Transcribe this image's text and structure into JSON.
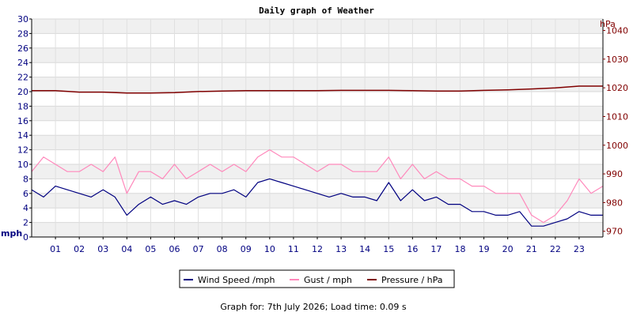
{
  "chart_data": {
    "type": "line",
    "title": "Daily graph of Weather",
    "footer": {
      "text": "Graph for: 7th July 2026; Load time: 0.09 s"
    },
    "x_ticks": [
      "01",
      "02",
      "03",
      "04",
      "05",
      "06",
      "07",
      "08",
      "09",
      "10",
      "11",
      "12",
      "13",
      "14",
      "15",
      "16",
      "17",
      "18",
      "19",
      "20",
      "21",
      "22",
      "23"
    ],
    "xlim": [
      0,
      24
    ],
    "grid": true,
    "legend_placement": "bottom-center",
    "left_axis": {
      "unit_label": "mph",
      "ylim": [
        0,
        30
      ],
      "ticks": [
        "0",
        "2",
        "4",
        "6",
        "8",
        "10",
        "12",
        "14",
        "16",
        "18",
        "20",
        "22",
        "24",
        "26",
        "28",
        "30"
      ]
    },
    "right_axis": {
      "unit_label": "hPa",
      "ylim": [
        968,
        1044
      ],
      "ticks": [
        "970",
        "980",
        "990",
        "1000",
        "1010",
        "1020",
        "1030",
        "1040"
      ]
    },
    "series": [
      {
        "name": "Wind Speed /mph",
        "axis": "left",
        "color": "#000080",
        "x": [
          0,
          0.5,
          1,
          1.5,
          2,
          2.5,
          3,
          3.5,
          4,
          4.5,
          5,
          5.5,
          6,
          6.5,
          7,
          7.5,
          8,
          8.5,
          9,
          9.5,
          10,
          10.5,
          11,
          11.5,
          12,
          12.5,
          13,
          13.5,
          14,
          14.5,
          15,
          15.5,
          16,
          16.5,
          17,
          17.5,
          18,
          18.5,
          19,
          19.5,
          20,
          20.5,
          21,
          21.5,
          22,
          22.5,
          23,
          23.5,
          24
        ],
        "values": [
          6.5,
          5.5,
          7,
          6.5,
          6,
          5.5,
          6.5,
          5.5,
          3,
          4.5,
          5.5,
          4.5,
          5,
          4.5,
          5.5,
          6,
          6,
          6.5,
          5.5,
          7.5,
          8,
          7.5,
          7,
          6.5,
          6,
          5.5,
          6,
          5.5,
          5.5,
          5,
          7.5,
          5,
          6.5,
          5,
          5.5,
          4.5,
          4.5,
          3.5,
          3.5,
          3,
          3,
          3.5,
          1.5,
          1.5,
          2,
          2.5,
          3.5,
          3,
          3
        ]
      },
      {
        "name": "Gust / mph",
        "axis": "left",
        "color": "#ff88bb",
        "x": [
          0,
          0.5,
          1,
          1.5,
          2,
          2.5,
          3,
          3.5,
          4,
          4.5,
          5,
          5.5,
          6,
          6.5,
          7,
          7.5,
          8,
          8.5,
          9,
          9.5,
          10,
          10.5,
          11,
          11.5,
          12,
          12.5,
          13,
          13.5,
          14,
          14.5,
          15,
          15.5,
          16,
          16.5,
          17,
          17.5,
          18,
          18.5,
          19,
          19.5,
          20,
          20.5,
          21,
          21.5,
          22,
          22.5,
          23,
          23.5,
          24
        ],
        "values": [
          9,
          11,
          10,
          9,
          9,
          10,
          9,
          11,
          6,
          9,
          9,
          8,
          10,
          8,
          9,
          10,
          9,
          10,
          9,
          11,
          12,
          11,
          11,
          10,
          9,
          10,
          10,
          9,
          9,
          9,
          11,
          8,
          10,
          8,
          9,
          8,
          8,
          7,
          7,
          6,
          6,
          6,
          3,
          2,
          3,
          5,
          8,
          6,
          7
        ]
      },
      {
        "name": "Pressure / hPa",
        "axis": "right",
        "color": "#800000",
        "x": [
          0,
          1,
          2,
          3,
          4,
          5,
          6,
          7,
          8,
          9,
          10,
          11,
          12,
          13,
          14,
          15,
          16,
          17,
          18,
          19,
          20,
          21,
          22,
          23,
          24
        ],
        "values": [
          1019,
          1019,
          1018.5,
          1018.5,
          1018.2,
          1018.2,
          1018.3,
          1018.7,
          1018.9,
          1019,
          1019,
          1019,
          1019,
          1019.1,
          1019.1,
          1019.1,
          1019,
          1018.9,
          1018.9,
          1019.1,
          1019.3,
          1019.6,
          1020,
          1020.6,
          1020.6
        ]
      }
    ]
  }
}
